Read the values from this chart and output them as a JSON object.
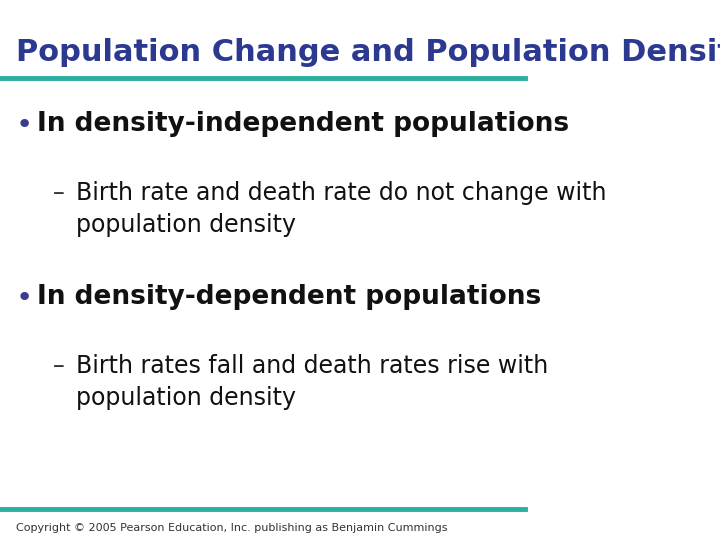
{
  "title": "Population Change and Population Density",
  "title_color": "#2B3990",
  "title_fontsize": 22,
  "title_font": "Arial",
  "line_color": "#2AAFA0",
  "line_width": 3.5,
  "bg_color": "#FFFFFF",
  "bullet_color": "#3B3B8F",
  "bullet_fontsize": 19,
  "sub_fontsize": 17,
  "bullet1": "In density-independent populations",
  "sub1": "Birth rate and death rate do not change with\npopulation density",
  "bullet2": "In density-dependent populations",
  "sub2": "Birth rates fall and death rates rise with\npopulation density",
  "footer": "Copyright © 2005 Pearson Education, Inc. publishing as Benjamin Cummings",
  "footer_fontsize": 8,
  "footer_color": "#333333"
}
